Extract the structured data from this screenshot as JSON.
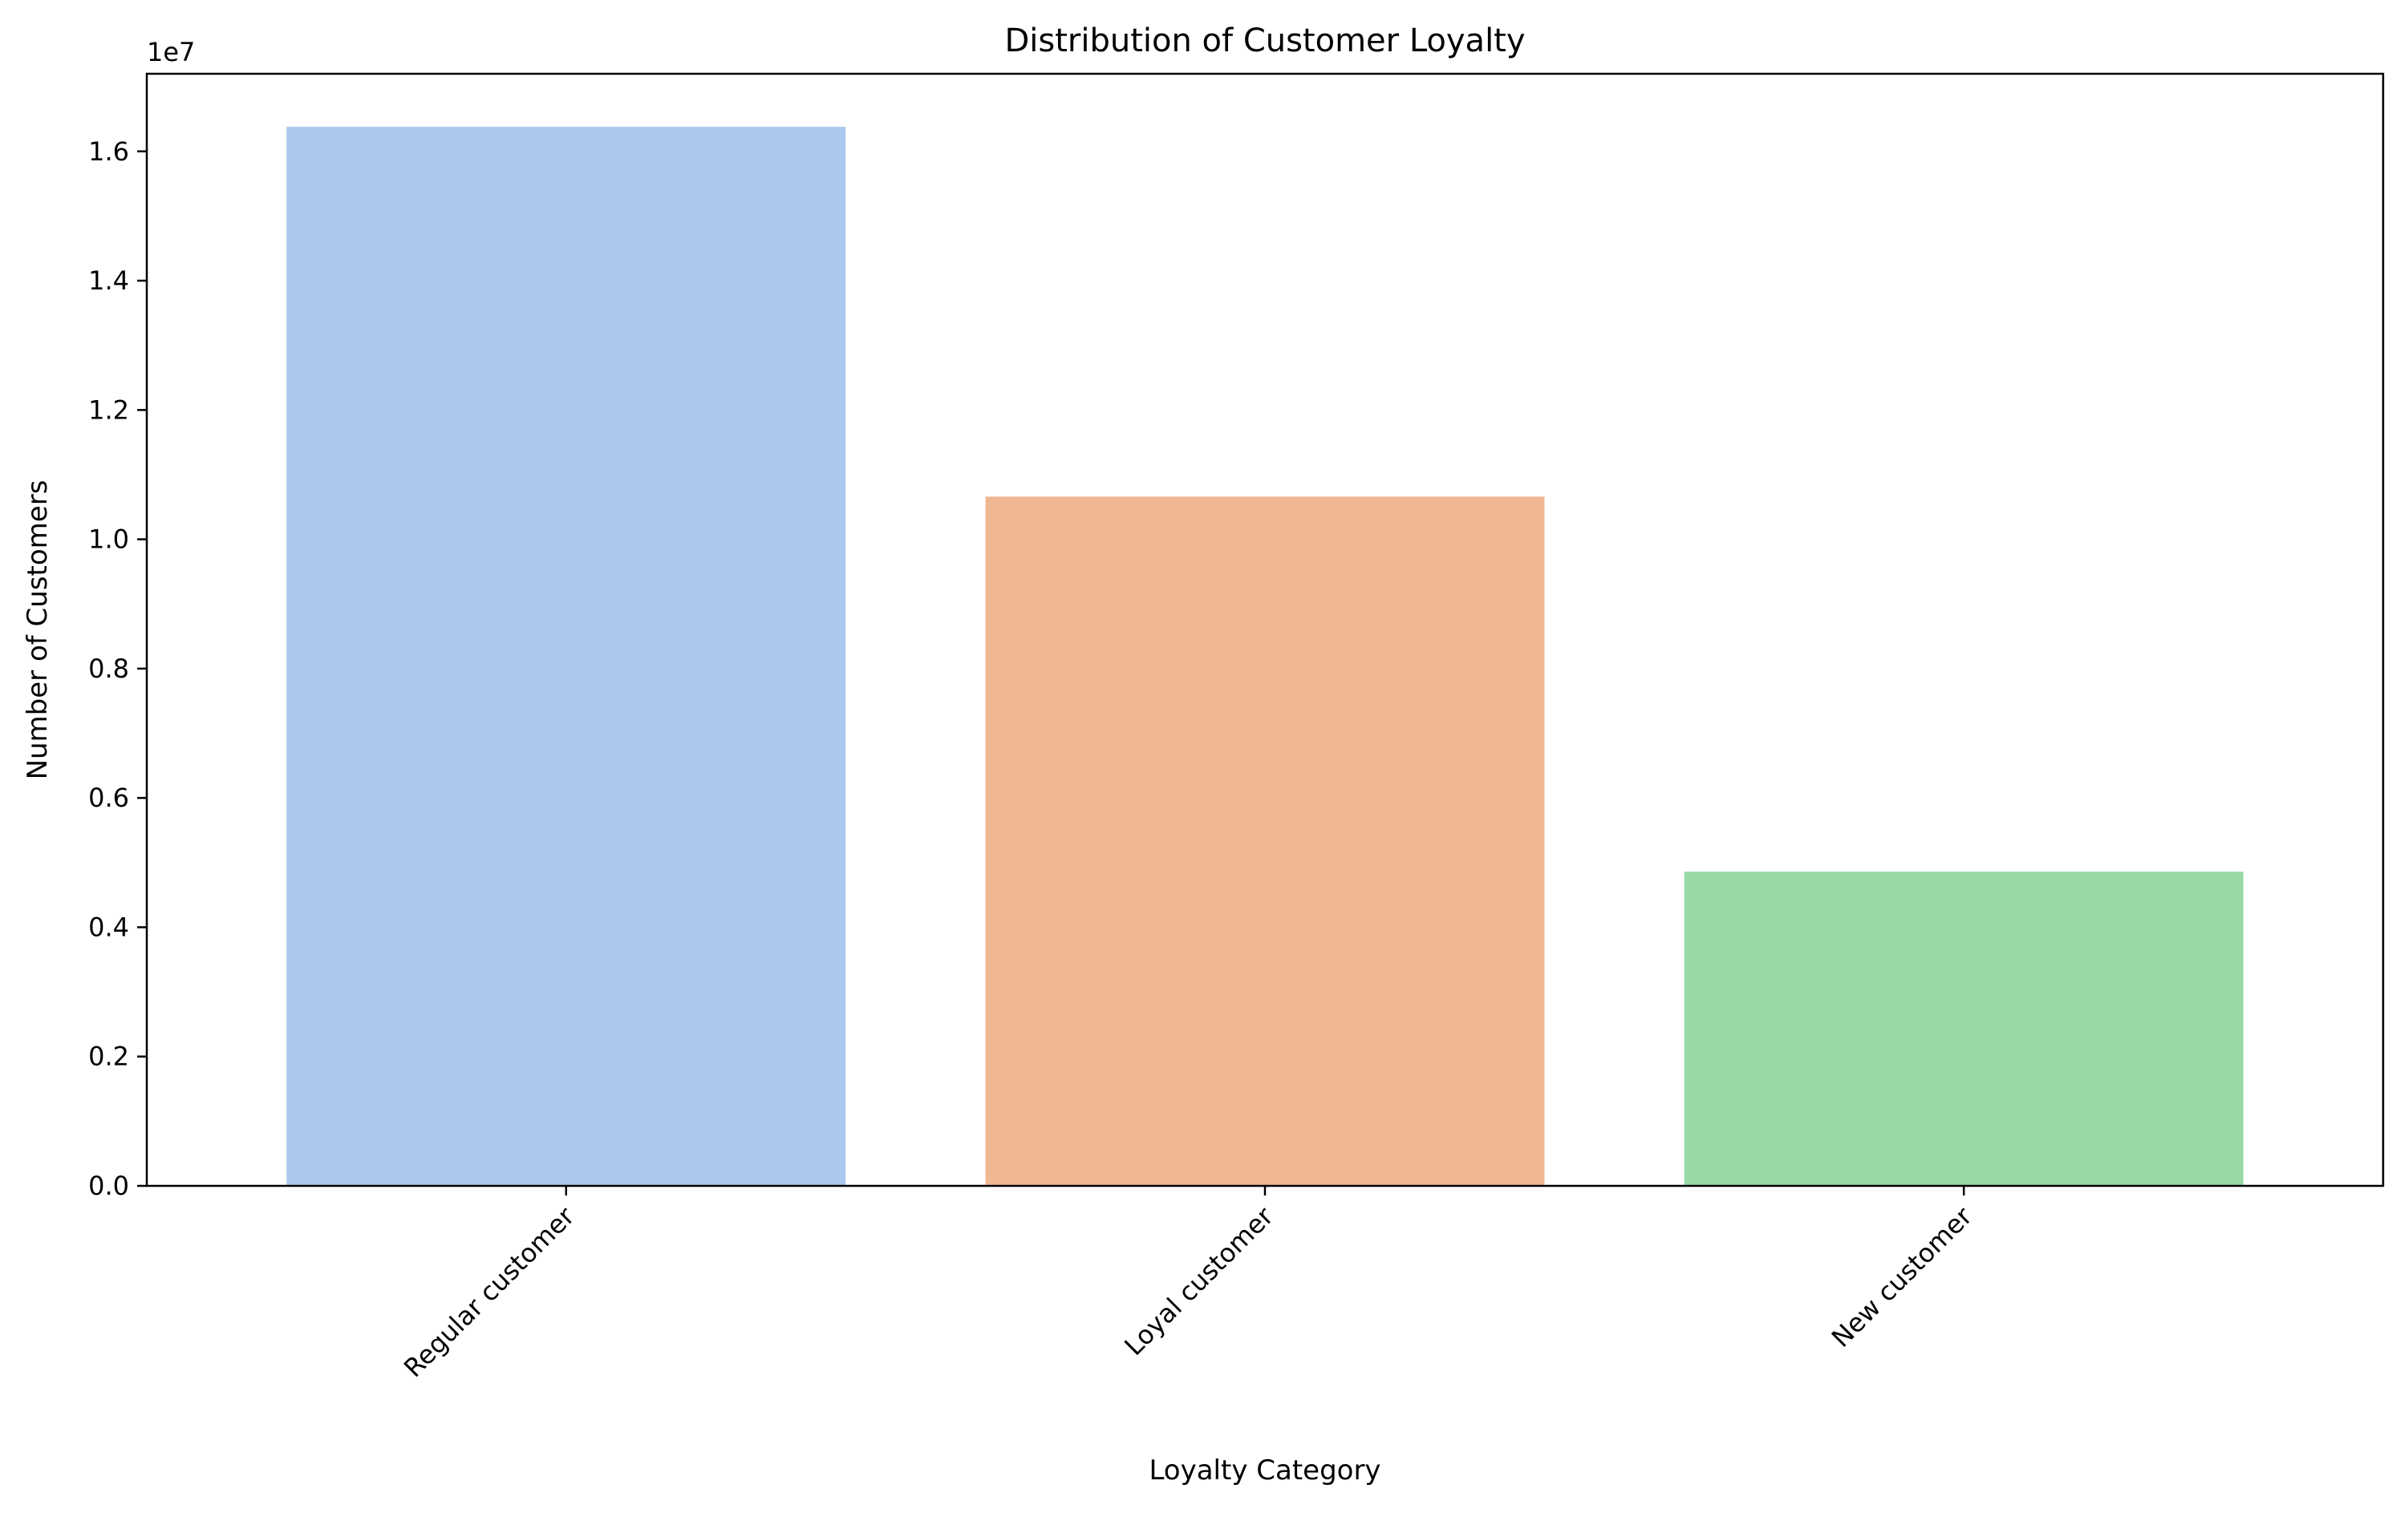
{
  "chart_data": {
    "type": "bar",
    "title": "Distribution of Customer Loyalty",
    "xlabel": "Loyalty Category",
    "ylabel": "Number of Customers",
    "offset_label": "1e7",
    "categories": [
      "Regular customer",
      "Loyal customer",
      "New customer"
    ],
    "values": [
      16380000,
      10660000,
      4860000
    ],
    "colors": [
      "#abc9ec",
      "#f0b892",
      "#98d9a7"
    ],
    "ylim": [
      0,
      17200000
    ],
    "yticks": [
      0,
      2000000,
      4000000,
      6000000,
      8000000,
      10000000,
      12000000,
      14000000,
      16000000
    ],
    "ytick_labels": [
      "0.0",
      "0.2",
      "0.4",
      "0.6",
      "0.8",
      "1.0",
      "1.2",
      "1.4",
      "1.6"
    ],
    "grid": false,
    "legend": "none"
  }
}
